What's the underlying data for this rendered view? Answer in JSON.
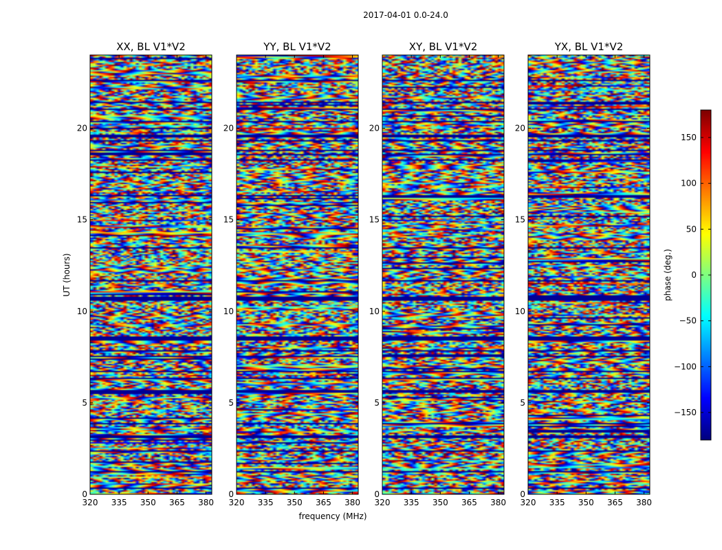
{
  "chart_data": {
    "type": "heatmap",
    "suptitle": "2017-04-01 0.0-24.0",
    "xlabel": "frequency (MHz)",
    "ylabel": "UT (hours)",
    "xlim": [
      320,
      383
    ],
    "ylim": [
      0,
      24
    ],
    "xticks": [
      320,
      335,
      350,
      365,
      380
    ],
    "yticks": [
      0,
      5,
      10,
      15,
      20
    ],
    "panels": [
      {
        "title": "XX, BL V1*V2"
      },
      {
        "title": "YY, BL V1*V2"
      },
      {
        "title": "XY, BL V1*V2"
      },
      {
        "title": "YX, BL V1*V2"
      }
    ],
    "colorbar": {
      "label": "phase (deg.)",
      "range": [
        -180,
        180
      ],
      "ticks": [
        150,
        100,
        50,
        0,
        -50,
        -100,
        -150
      ],
      "tick_labels": [
        "150",
        "100",
        "50",
        "0",
        "−50",
        "−100",
        "−150"
      ],
      "colormap": "jet"
    }
  }
}
